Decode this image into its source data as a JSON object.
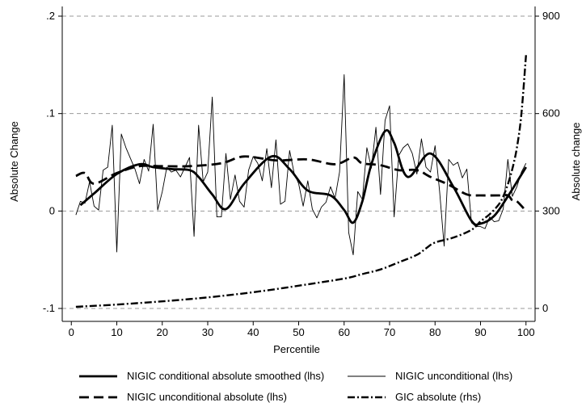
{
  "chart_data": {
    "type": "line",
    "xlabel": "Percentile",
    "ylabel_left": "Absolute Change",
    "ylabel_right": "Absolute change",
    "x_ticks": [
      0,
      10,
      20,
      30,
      40,
      50,
      60,
      70,
      80,
      90,
      100
    ],
    "y_left_ticks": [
      {
        "value": 0.2,
        "label": ".2"
      },
      {
        "value": 0.1,
        "label": ".1"
      },
      {
        "value": 0,
        "label": "0"
      },
      {
        "value": -0.1,
        "label": "-.1"
      }
    ],
    "y_right_ticks": [
      {
        "value": 900,
        "label": "900"
      },
      {
        "value": 600,
        "label": "600"
      },
      {
        "value": 300,
        "label": "300"
      },
      {
        "value": 0,
        "label": "0"
      }
    ],
    "xlim": [
      -2,
      102
    ],
    "ylim_left": [
      -0.1,
      0.2
    ],
    "ylim_right": [
      0,
      900
    ],
    "grid": "horizontal dashed at left-axis ticks",
    "legend_position": "bottom",
    "series": [
      {
        "name": "NIGIC conditional absolute smoothed (lhs)",
        "axis": "left",
        "style": "thick-solid",
        "x": [
          2,
          5,
          10,
          15,
          18,
          22,
          26,
          28,
          31,
          34,
          38,
          44,
          48,
          52,
          57,
          60,
          62,
          64,
          66,
          69,
          71,
          74,
          79,
          84,
          88,
          90,
          93,
          96,
          100
        ],
        "y": [
          0.006,
          0.018,
          0.038,
          0.048,
          0.045,
          0.043,
          0.042,
          0.035,
          0.017,
          0.002,
          0.028,
          0.056,
          0.043,
          0.021,
          0.016,
          0.001,
          -0.012,
          0.01,
          0.048,
          0.082,
          0.07,
          0.035,
          0.059,
          0.025,
          -0.01,
          -0.013,
          -0.005,
          0.015,
          0.045
        ]
      },
      {
        "name": "NIGIC unconditional (lhs)",
        "axis": "left",
        "style": "thin-solid",
        "x": [
          1,
          2,
          3,
          4,
          5,
          6,
          7,
          8,
          9,
          10,
          11,
          12,
          13,
          14,
          15,
          16,
          17,
          18,
          19,
          20,
          21,
          22,
          23,
          24,
          25,
          26,
          27,
          28,
          29,
          30,
          31,
          32,
          33,
          34,
          35,
          36,
          37,
          38,
          39,
          40,
          41,
          42,
          43,
          44,
          45,
          46,
          47,
          48,
          49,
          50,
          51,
          52,
          53,
          54,
          55,
          56,
          57,
          58,
          59,
          60,
          61,
          62,
          63,
          64,
          65,
          66,
          67,
          68,
          69,
          70,
          71,
          72,
          73,
          74,
          75,
          76,
          77,
          78,
          79,
          80,
          81,
          82,
          83,
          84,
          85,
          86,
          87,
          88,
          89,
          90,
          91,
          92,
          93,
          94,
          95,
          96,
          97,
          98,
          99,
          100
        ],
        "y": [
          -0.004,
          0.01,
          0.008,
          0.03,
          0.005,
          0.001,
          0.042,
          0.045,
          0.088,
          -0.042,
          0.079,
          0.065,
          0.054,
          0.043,
          0.028,
          0.053,
          0.041,
          0.089,
          0.001,
          0.02,
          0.045,
          0.04,
          0.042,
          0.035,
          0.045,
          0.055,
          -0.026,
          0.088,
          0.03,
          0.04,
          0.117,
          -0.006,
          -0.006,
          0.059,
          0.012,
          0.037,
          0.01,
          0.004,
          0.042,
          0.056,
          0.049,
          0.031,
          0.064,
          0.024,
          0.073,
          0.007,
          0.01,
          0.062,
          0.039,
          0.028,
          0.005,
          0.031,
          0.002,
          -0.007,
          0.004,
          0.009,
          0.025,
          0.013,
          0.04,
          0.14,
          -0.022,
          -0.045,
          0.02,
          0.012,
          0.065,
          0.044,
          0.086,
          0.017,
          0.093,
          0.108,
          -0.006,
          0.057,
          0.065,
          0.069,
          0.059,
          0.038,
          0.074,
          0.045,
          0.04,
          0.067,
          0.02,
          -0.036,
          0.053,
          0.047,
          0.05,
          0.034,
          0.043,
          -0.012,
          -0.016,
          -0.016,
          -0.018,
          -0.006,
          -0.011,
          -0.01,
          0.002,
          0.053,
          0.015,
          0.025,
          0.04,
          0.049
        ]
      },
      {
        "name": "NIGIC unconditional absolute (lhs)",
        "axis": "left",
        "style": "dashed",
        "x": [
          1,
          3,
          5,
          10,
          15,
          20,
          26,
          33,
          38,
          45,
          52,
          58,
          62,
          64,
          68,
          72,
          76,
          79,
          83,
          87,
          90,
          94,
          96,
          97,
          98,
          100
        ],
        "y": [
          0.036,
          0.039,
          0.028,
          0.039,
          0.046,
          0.046,
          0.046,
          0.049,
          0.056,
          0.052,
          0.053,
          0.048,
          0.055,
          0.049,
          0.047,
          0.042,
          0.042,
          0.035,
          0.027,
          0.017,
          0.016,
          0.016,
          0.016,
          0.011,
          0.01,
          0.0
        ]
      },
      {
        "name": "GIC absolute (rhs)",
        "axis": "right",
        "style": "dash-dot",
        "x": [
          1,
          10,
          20,
          30,
          40,
          50,
          60,
          64,
          68,
          72,
          76,
          78,
          80,
          84,
          88,
          90,
          92,
          94,
          95,
          96,
          97,
          98,
          99,
          100
        ],
        "y": [
          5,
          12,
          22,
          34,
          50,
          70,
          92,
          106,
          120,
          142,
          165,
          185,
          203,
          218,
          242,
          268,
          290,
          320,
          345,
          382,
          430,
          495,
          600,
          780
        ]
      }
    ]
  }
}
